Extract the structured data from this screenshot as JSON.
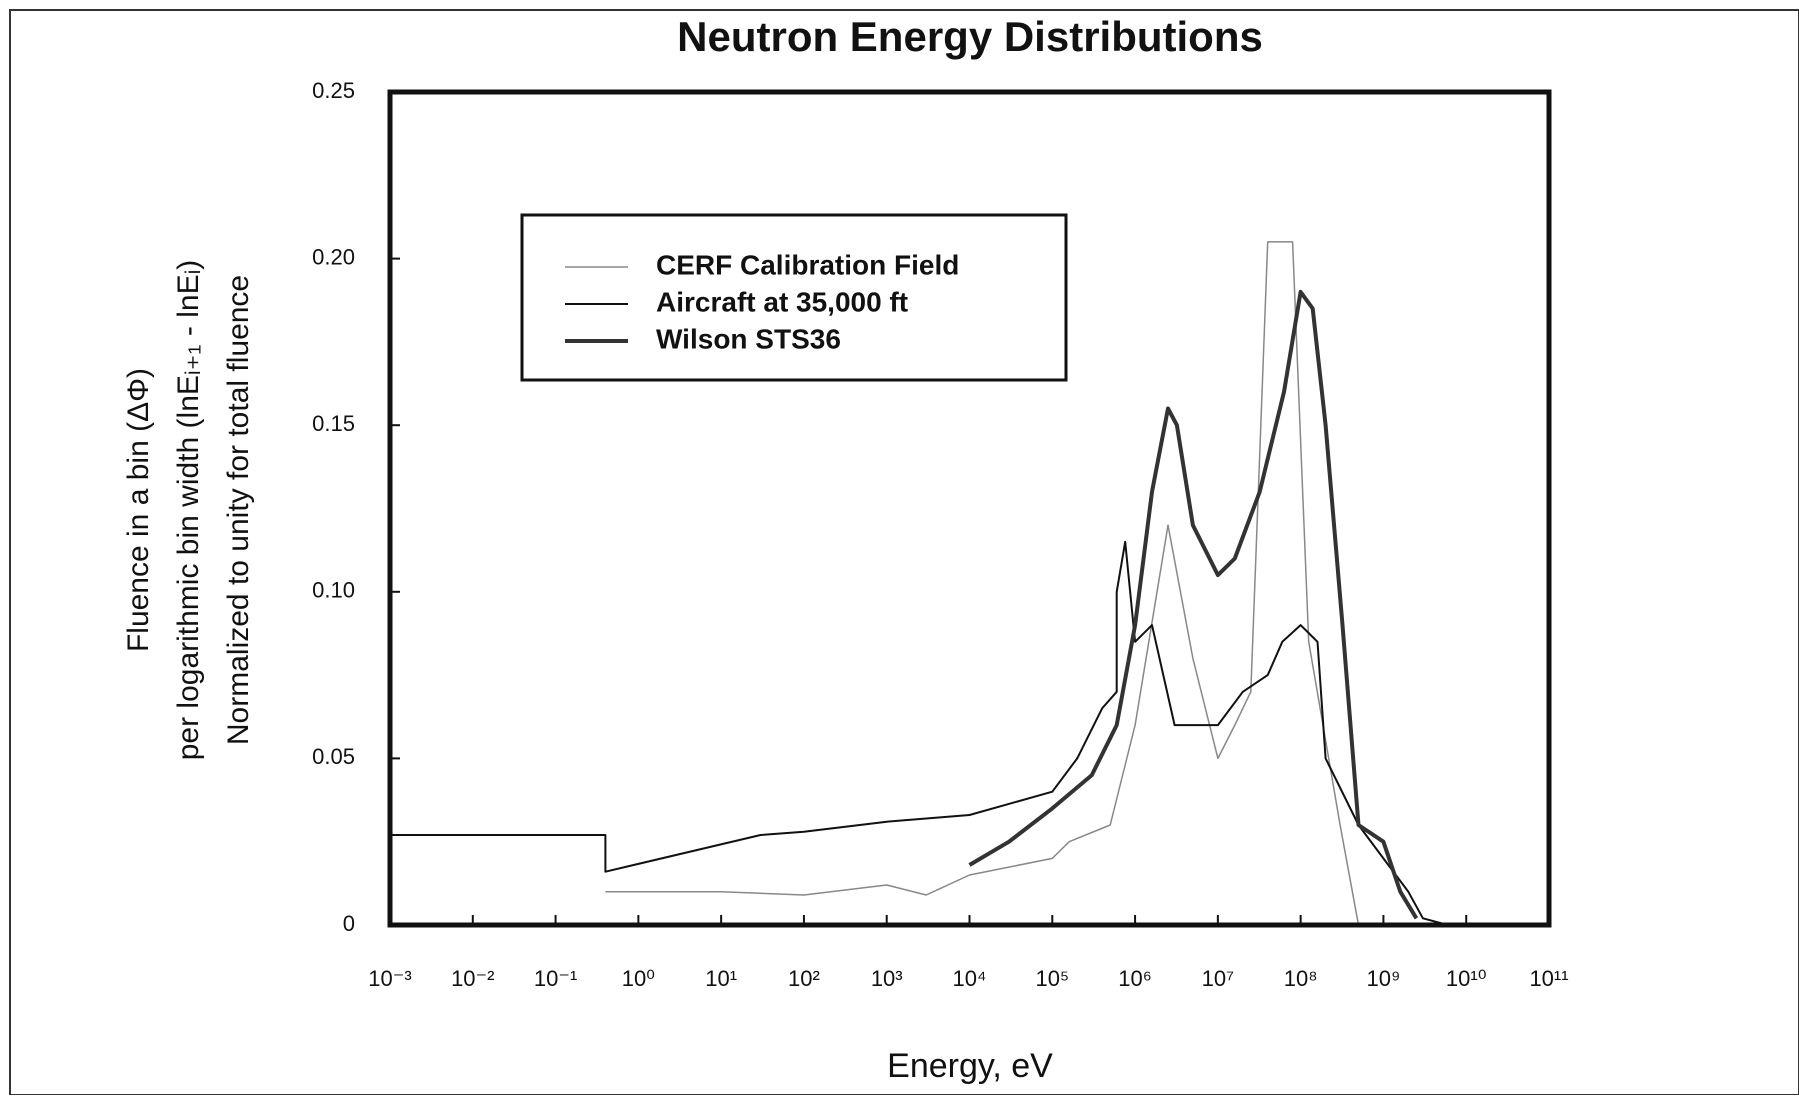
{
  "chart_data": {
    "type": "line",
    "title": "Neutron Energy Distributions",
    "xlabel": "Energy, eV",
    "ylabel": [
      "Fluence in a bin (ΔΦ)",
      "per logarithmic bin width (lnEᵢ₊₁ - lnEᵢ)",
      "Normalized to unity for total fluence"
    ],
    "xscale": "log",
    "xlim": [
      0.001,
      100000000000
    ],
    "ylim": [
      0,
      0.25
    ],
    "xticks": [
      {
        "value": 0.001,
        "label": "10⁻³"
      },
      {
        "value": 0.01,
        "label": "10⁻²"
      },
      {
        "value": 0.1,
        "label": "10⁻¹"
      },
      {
        "value": 1,
        "label": "10⁰"
      },
      {
        "value": 10,
        "label": "10¹"
      },
      {
        "value": 100,
        "label": "10²"
      },
      {
        "value": 1000,
        "label": "10³"
      },
      {
        "value": 10000,
        "label": "10⁴"
      },
      {
        "value": 100000,
        "label": "10⁵"
      },
      {
        "value": 1000000,
        "label": "10⁶"
      },
      {
        "value": 10000000,
        "label": "10⁷"
      },
      {
        "value": 100000000,
        "label": "10⁸"
      },
      {
        "value": 1000000000,
        "label": "10⁹"
      },
      {
        "value": 10000000000,
        "label": "10¹⁰"
      },
      {
        "value": 100000000000,
        "label": "10¹¹"
      }
    ],
    "yticks": [
      0,
      0.05,
      {
        "value": 0.1,
        "label": "0.10"
      },
      0.15,
      {
        "value": 0.2,
        "label": "0.20"
      },
      0.25
    ],
    "series": [
      {
        "name": "CERF Calibration Field",
        "color": "#888888",
        "width": 1.5,
        "x": [
          0.4,
          10,
          100,
          1000,
          3000,
          10000,
          100000,
          160000,
          500000,
          1000000,
          2500000,
          5000000,
          10000000,
          16000000,
          25000000,
          40000000,
          80000000,
          125000000,
          300000000,
          500000000
        ],
        "values": [
          0.01,
          0.01,
          0.009,
          0.012,
          0.009,
          0.015,
          0.02,
          0.025,
          0.03,
          0.06,
          0.12,
          0.08,
          0.05,
          0.06,
          0.07,
          0.205,
          0.205,
          0.085,
          0.03,
          0
        ]
      },
      {
        "name": "Aircraft at 35,000 ft",
        "color": "#111111",
        "width": 2,
        "x": [
          0.001,
          0.4,
          0.4,
          30,
          100,
          1000,
          10000,
          100000,
          200000,
          400000,
          600000,
          600000,
          760000,
          1000000,
          1600000,
          3000000,
          10000000,
          20000000,
          40000000,
          60000000,
          100000000,
          160000000,
          200000000,
          500000000,
          1000000000,
          2000000000,
          3000000000,
          6000000000
        ],
        "values": [
          0.027,
          0.027,
          0.016,
          0.027,
          0.028,
          0.031,
          0.033,
          0.04,
          0.05,
          0.065,
          0.07,
          0.1,
          0.115,
          0.085,
          0.09,
          0.06,
          0.06,
          0.07,
          0.075,
          0.085,
          0.09,
          0.085,
          0.05,
          0.03,
          0.02,
          0.01,
          0.002,
          0
        ]
      },
      {
        "name": "Wilson STS36",
        "color": "#333333",
        "width": 4,
        "x": [
          10000,
          30000,
          100000,
          300000,
          600000,
          1000000,
          1600000,
          2500000,
          3200000,
          5000000,
          10000000,
          16000000,
          32000000,
          63000000,
          100000000,
          140000000,
          200000000,
          320000000,
          500000000,
          1000000000,
          1600000000,
          2500000000
        ],
        "values": [
          0.018,
          0.025,
          0.035,
          0.045,
          0.06,
          0.09,
          0.13,
          0.155,
          0.15,
          0.12,
          0.105,
          0.11,
          0.13,
          0.16,
          0.19,
          0.185,
          0.15,
          0.09,
          0.03,
          0.025,
          0.01,
          0.002
        ]
      }
    ]
  }
}
